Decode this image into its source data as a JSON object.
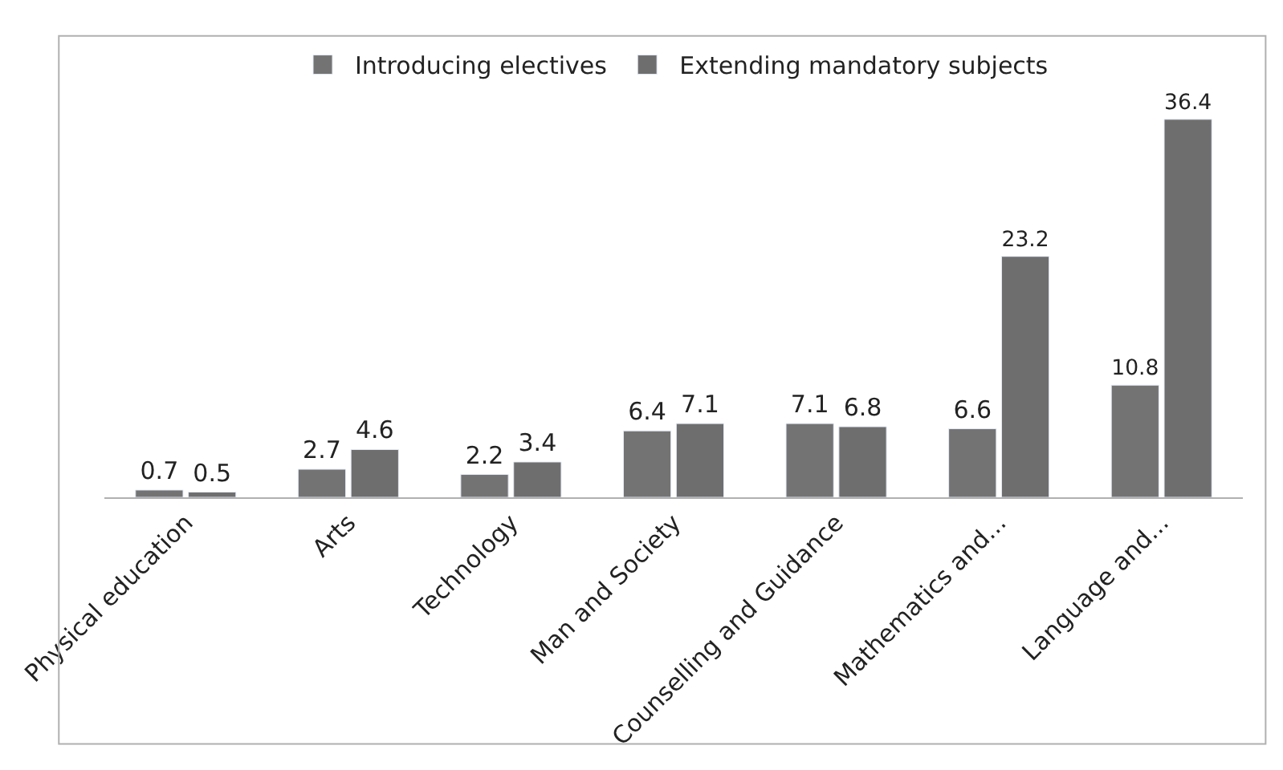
{
  "chart_data": {
    "type": "bar",
    "categories": [
      "Physical education",
      "Arts",
      "Technology",
      "Man and Society",
      "Counselling and Guidance",
      "Mathematics and...",
      "Language and..."
    ],
    "series": [
      {
        "name": "Introducing electives",
        "color": "#737373",
        "values": [
          0.7,
          2.7,
          2.2,
          6.4,
          7.1,
          6.6,
          10.8
        ]
      },
      {
        "name": "Extending mandatory subjects",
        "color": "#6e6e6e",
        "values": [
          0.5,
          4.6,
          3.4,
          7.1,
          6.8,
          23.2,
          36.4
        ]
      }
    ],
    "data_labels": true,
    "legend": "top",
    "tick_labels": "x"
  }
}
